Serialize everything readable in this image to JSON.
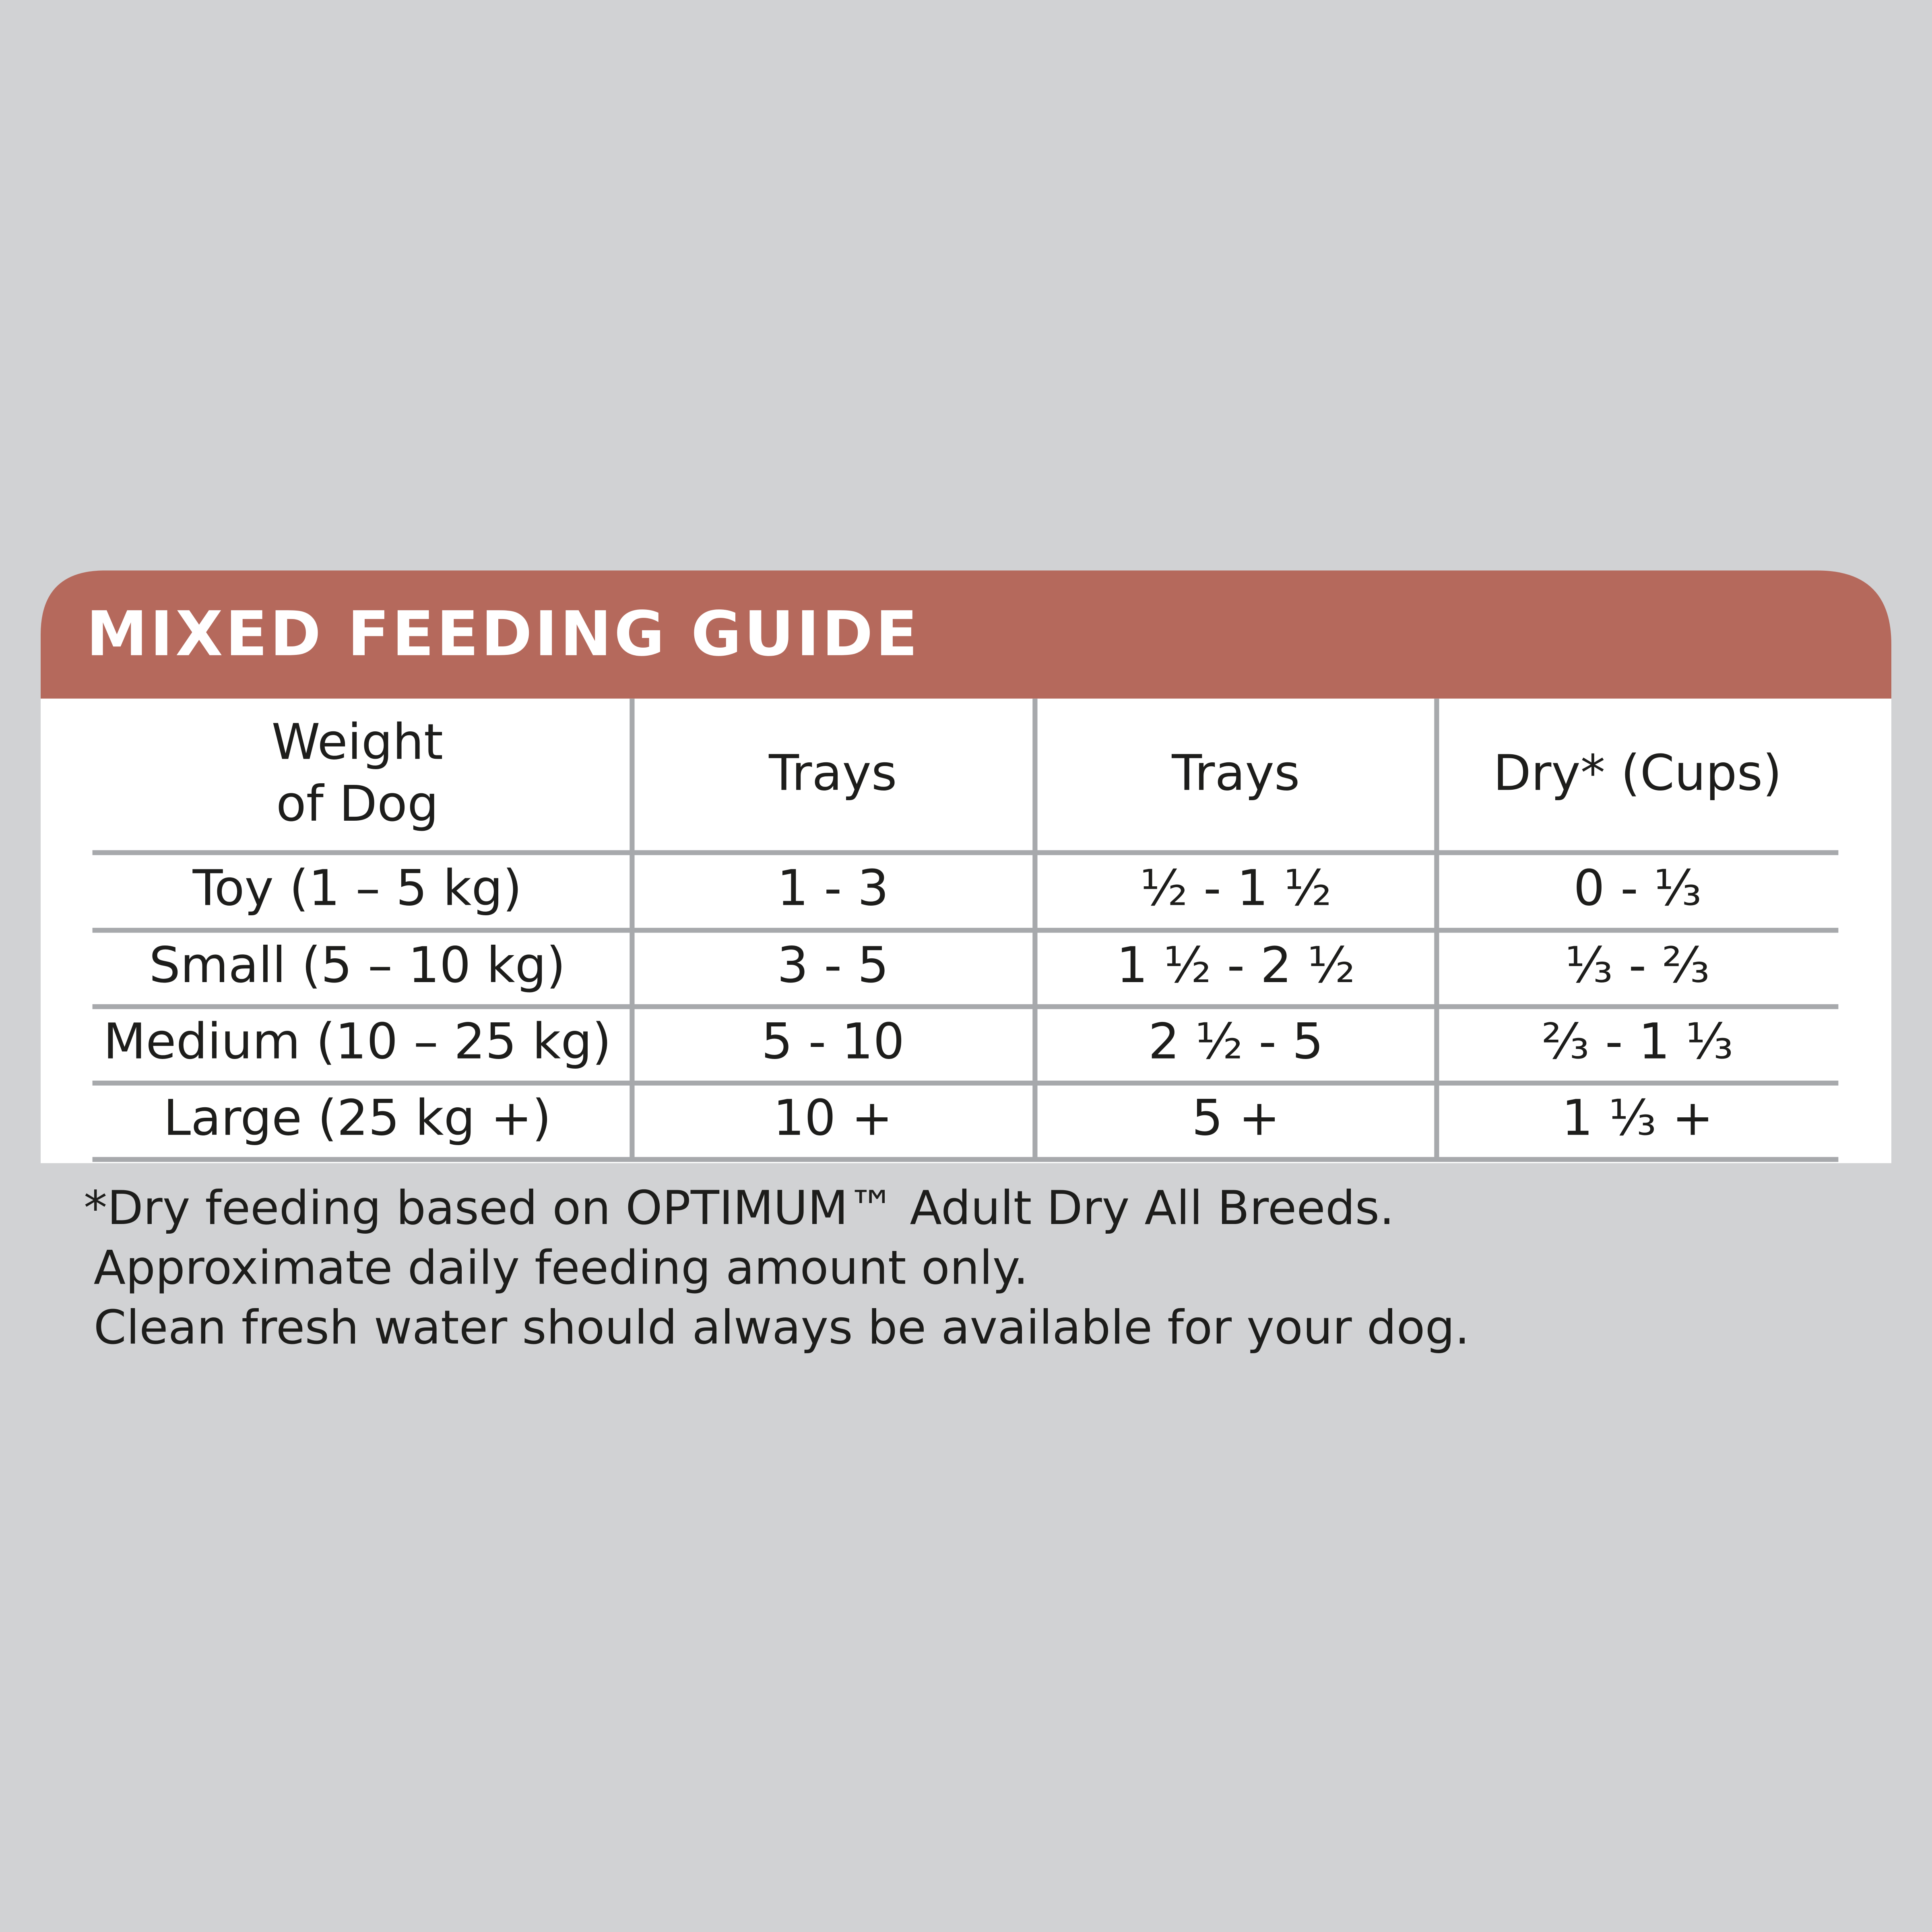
{
  "header": {
    "title": "MIXED FEEDING GUIDE"
  },
  "table": {
    "columns": [
      [
        "Weight",
        "of Dog"
      ],
      "Trays",
      "Trays",
      "Dry* (Cups)"
    ],
    "rows": [
      [
        "Toy (1 – 5 kg)",
        "1 - 3",
        "½ - 1 ½",
        "0 - ⅓"
      ],
      [
        "Small (5 – 10 kg)",
        "3 - 5",
        "1 ½ - 2 ½",
        "⅓ - ⅔"
      ],
      [
        "Medium (10 – 25 kg)",
        "5 - 10",
        "2 ½ - 5",
        "⅔ - 1 ⅓"
      ],
      [
        "Large (25 kg +)",
        "10 +",
        "5 +",
        "1 ⅓ +"
      ]
    ]
  },
  "footnote": [
    "*Dry feeding based on OPTIMUM™ Adult Dry All Breeds.",
    "Approximate daily feeding amount only.",
    "Clean fresh water should always be available for your dog."
  ]
}
